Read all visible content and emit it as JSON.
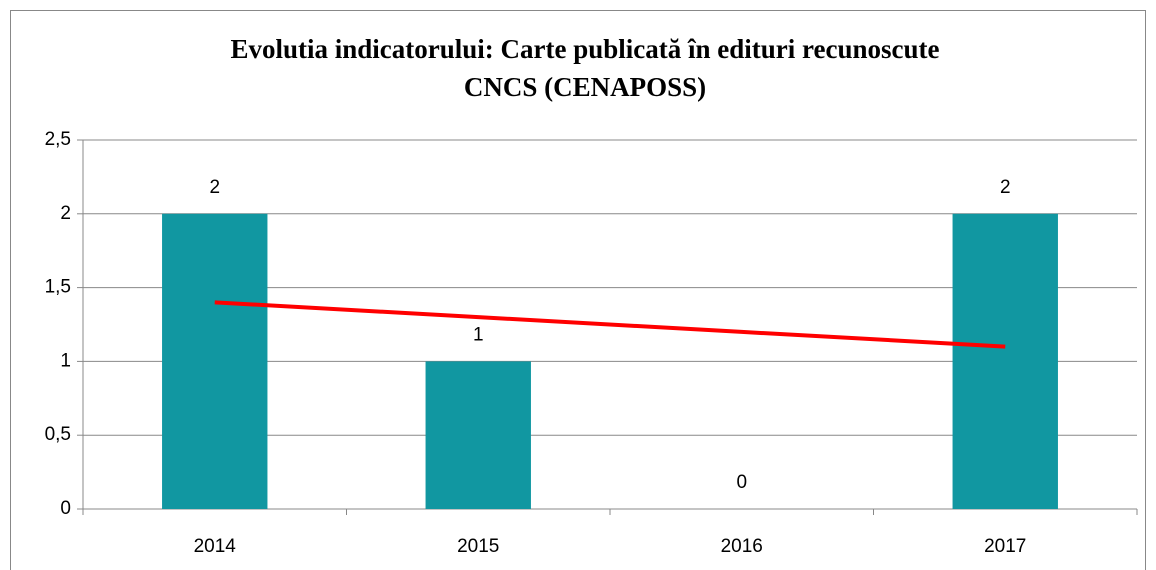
{
  "chart_data": {
    "type": "bar",
    "title": [
      "Evolutia indicatorului: Carte publicată în edituri recunoscute",
      "CNCS (CENAPOSS)"
    ],
    "categories": [
      "2014",
      "2015",
      "2016",
      "2017"
    ],
    "values": [
      2,
      1,
      0,
      2
    ],
    "color": "#1197a1",
    "trendline": {
      "color": "#ff0000",
      "values": [
        1.4,
        1.3,
        1.2,
        1.1
      ]
    },
    "ylim": [
      0,
      2.5
    ],
    "yticks": [
      0,
      {
        "value": 0.5,
        "label": "0,5"
      },
      1,
      {
        "value": 1.5,
        "label": "1,5"
      },
      2,
      {
        "value": 2.5,
        "label": "2,5"
      }
    ],
    "grid": true
  }
}
